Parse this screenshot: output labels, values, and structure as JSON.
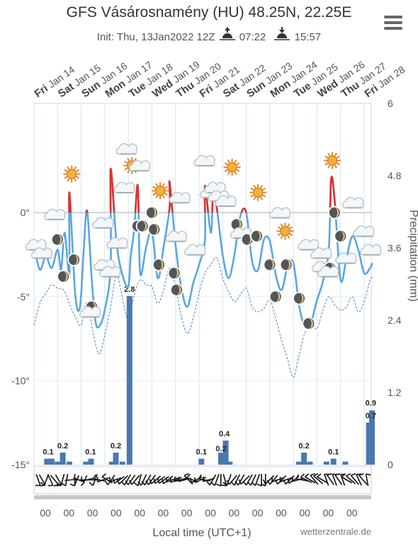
{
  "header": {
    "title": "GFS Vásárosnamény (HU) 48.25N, 22.25E",
    "init": "Init: Thu, 13Jan2022 12Z",
    "sunrise": "07:22",
    "sunset": "15:57"
  },
  "footer": {
    "xlabel": "Local time (UTC+1)",
    "credit": "wetterzentrale.de",
    "hour_label": "00"
  },
  "chart_data": {
    "type": "line",
    "days": [
      {
        "dow": "Fri",
        "date": "Jan 14"
      },
      {
        "dow": "Sat",
        "date": "Jan 15"
      },
      {
        "dow": "Sun",
        "date": "Jan 16"
      },
      {
        "dow": "Mon",
        "date": "Jan 17"
      },
      {
        "dow": "Tue",
        "date": "Jan 18"
      },
      {
        "dow": "Wed",
        "date": "Jan 19"
      },
      {
        "dow": "Thu",
        "date": "Jan 20"
      },
      {
        "dow": "Fri",
        "date": "Jan 21"
      },
      {
        "dow": "Sat",
        "date": "Jan 22"
      },
      {
        "dow": "Sun",
        "date": "Jan 23"
      },
      {
        "dow": "Mon",
        "date": "Jan 24"
      },
      {
        "dow": "Tue",
        "date": "Jan 25"
      },
      {
        "dow": "Wed",
        "date": "Jan 26"
      },
      {
        "dow": "Thu",
        "date": "Jan 27"
      },
      {
        "dow": "Fri",
        "date": "Jan 28"
      }
    ],
    "x_range_days": [
      0,
      14.3
    ],
    "temp_axis": {
      "ylim": [
        -15,
        6.5
      ],
      "ticks": [
        0,
        -5,
        -10,
        -15
      ],
      "tick_suffix": "°"
    },
    "precip_axis": {
      "label": "Precipitation (mm)",
      "ylim": [
        0,
        6
      ],
      "ticks": [
        "6",
        "4.8",
        "3.6",
        "2.4",
        "1.2",
        "0"
      ]
    },
    "colors": {
      "temp": "#5aa6e0",
      "temp_above_zero": "#e03030",
      "dewpoint": "#4a7fc1",
      "precip": "#4a78b0",
      "grid": "#d4e4f0",
      "zero_line": "#aaaaaa"
    },
    "temperature": [
      [
        0.0,
        -2.0
      ],
      [
        0.25,
        -3.4
      ],
      [
        0.5,
        -2.6
      ],
      [
        0.75,
        -3.3
      ],
      [
        1.0,
        -2.2
      ],
      [
        1.15,
        -3.4
      ],
      [
        1.3,
        -1.2
      ],
      [
        1.5,
        -3.8
      ],
      [
        1.75,
        -4.9
      ],
      [
        1.95,
        -5.6
      ],
      [
        2.1,
        -2.4
      ],
      [
        2.25,
        0.1
      ],
      [
        2.45,
        -4.0
      ],
      [
        2.6,
        -6.4
      ],
      [
        2.75,
        -6.8
      ],
      [
        3.0,
        -5.8
      ],
      [
        3.25,
        -3.2
      ],
      [
        3.5,
        -1.8
      ],
      [
        3.75,
        -3.7
      ],
      [
        4.0,
        -4.4
      ],
      [
        4.1,
        -2.6
      ],
      [
        4.25,
        -1.0
      ],
      [
        4.5,
        -3.6
      ],
      [
        4.75,
        -2.1
      ],
      [
        5.0,
        -1.1
      ],
      [
        5.25,
        -3.9
      ],
      [
        5.5,
        -2.0
      ],
      [
        5.75,
        0.3
      ],
      [
        6.0,
        -1.9
      ],
      [
        6.25,
        -4.5
      ],
      [
        6.5,
        -5.6
      ],
      [
        6.75,
        -4.2
      ],
      [
        7.0,
        -3.1
      ],
      [
        7.25,
        -1.6
      ],
      [
        7.5,
        -1.2
      ],
      [
        7.75,
        0.3
      ],
      [
        8.0,
        -2.5
      ],
      [
        8.25,
        -3.9
      ],
      [
        8.5,
        -2.5
      ],
      [
        8.75,
        -0.2
      ],
      [
        9.0,
        0.0
      ],
      [
        9.25,
        -2.9
      ],
      [
        9.5,
        -3.4
      ],
      [
        9.75,
        -1.6
      ],
      [
        10.0,
        -1.7
      ],
      [
        10.25,
        -3.7
      ],
      [
        10.5,
        -4.6
      ],
      [
        10.75,
        -3.2
      ],
      [
        11.0,
        -3.0
      ],
      [
        11.25,
        -5.6
      ],
      [
        11.5,
        -6.8
      ],
      [
        11.75,
        -6.5
      ],
      [
        12.0,
        -5.2
      ],
      [
        12.25,
        -4.1
      ],
      [
        12.5,
        -2.2
      ],
      [
        12.75,
        0.7
      ],
      [
        13.0,
        -4.0
      ],
      [
        13.25,
        -2.7
      ],
      [
        13.5,
        -1.4
      ],
      [
        13.75,
        -2.2
      ],
      [
        14.0,
        -3.6
      ],
      [
        14.25,
        -3.3
      ],
      [
        14.35,
        -3.0
      ]
    ],
    "temperature_highs": [
      [
        1.5,
        1.2
      ],
      [
        3.25,
        2.6
      ],
      [
        4.4,
        1.6
      ],
      [
        5.75,
        1.8
      ],
      [
        7.25,
        1.6
      ],
      [
        7.6,
        1.4
      ],
      [
        12.6,
        2.0
      ]
    ],
    "dewpoint": [
      [
        0.0,
        -6.7
      ],
      [
        0.25,
        -5.4
      ],
      [
        0.5,
        -4.8
      ],
      [
        0.75,
        -4.3
      ],
      [
        1.0,
        -4.5
      ],
      [
        1.25,
        -4.6
      ],
      [
        1.5,
        -5.4
      ],
      [
        1.75,
        -6.2
      ],
      [
        2.0,
        -6.7
      ],
      [
        2.25,
        -5.3
      ],
      [
        2.5,
        -7.1
      ],
      [
        2.75,
        -8.4
      ],
      [
        3.0,
        -7.3
      ],
      [
        3.25,
        -5.6
      ],
      [
        3.5,
        -3.7
      ],
      [
        3.75,
        -5.1
      ],
      [
        4.0,
        -6.4
      ],
      [
        4.25,
        -4.9
      ],
      [
        4.5,
        -4.0
      ],
      [
        4.75,
        -4.3
      ],
      [
        5.0,
        -4.4
      ],
      [
        5.25,
        -5.4
      ],
      [
        5.5,
        -4.6
      ],
      [
        5.75,
        -3.3
      ],
      [
        6.0,
        -4.4
      ],
      [
        6.25,
        -6.2
      ],
      [
        6.5,
        -7.2
      ],
      [
        6.75,
        -6.3
      ],
      [
        7.0,
        -4.8
      ],
      [
        7.25,
        -3.6
      ],
      [
        7.5,
        -3.1
      ],
      [
        7.75,
        -2.7
      ],
      [
        8.0,
        -3.9
      ],
      [
        8.25,
        -4.7
      ],
      [
        8.5,
        -5.3
      ],
      [
        8.75,
        -4.9
      ],
      [
        9.0,
        -4.5
      ],
      [
        9.25,
        -5.6
      ],
      [
        9.5,
        -5.9
      ],
      [
        9.75,
        -5.7
      ],
      [
        10.0,
        -5.2
      ],
      [
        10.25,
        -6.3
      ],
      [
        10.5,
        -7.6
      ],
      [
        10.75,
        -8.7
      ],
      [
        11.0,
        -9.8
      ],
      [
        11.25,
        -8.4
      ],
      [
        11.5,
        -7.1
      ],
      [
        11.75,
        -6.6
      ],
      [
        12.0,
        -6.9
      ],
      [
        12.25,
        -5.8
      ],
      [
        12.5,
        -5.0
      ],
      [
        12.75,
        -5.5
      ],
      [
        13.0,
        -5.8
      ],
      [
        13.25,
        -5.6
      ],
      [
        13.5,
        -5.0
      ],
      [
        13.75,
        -5.9
      ],
      [
        14.0,
        -5.3
      ],
      [
        14.25,
        -4.0
      ],
      [
        14.35,
        -3.9
      ]
    ],
    "precip_bars": [
      [
        0.55,
        0.1
      ],
      [
        0.75,
        0.1
      ],
      [
        1.0,
        0.05
      ],
      [
        1.22,
        0.2
      ],
      [
        1.5,
        0.05
      ],
      [
        2.2,
        0.05
      ],
      [
        2.42,
        0.1
      ],
      [
        3.3,
        0.05
      ],
      [
        3.47,
        0.2
      ],
      [
        3.75,
        0.05
      ],
      [
        4.05,
        2.8
      ],
      [
        7.1,
        0.1
      ],
      [
        7.93,
        0.2
      ],
      [
        8.13,
        0.4
      ],
      [
        8.3,
        0.05
      ],
      [
        11.23,
        0.05
      ],
      [
        11.45,
        0.2
      ],
      [
        11.7,
        0.05
      ],
      [
        12.4,
        0.05
      ],
      [
        12.7,
        0.1
      ],
      [
        13.2,
        0.05
      ],
      [
        14.2,
        0.7
      ],
      [
        14.33,
        0.9
      ]
    ],
    "precip_labels": [
      [
        0.6,
        "0.1"
      ],
      [
        1.22,
        "0.2"
      ],
      [
        2.4,
        "0.1"
      ],
      [
        3.47,
        "0.2"
      ],
      [
        4.05,
        "2.8"
      ],
      [
        7.1,
        "0.1"
      ],
      [
        7.93,
        "0.2"
      ],
      [
        8.07,
        "0.4"
      ],
      [
        11.45,
        "0.2"
      ],
      [
        12.7,
        "0.1"
      ],
      [
        14.28,
        "0.7"
      ],
      [
        14.28,
        "0.9"
      ]
    ],
    "weather_icons": [
      [
        0.1,
        -2.0,
        "cloud"
      ],
      [
        0.35,
        -2.5,
        "cloud"
      ],
      [
        0.9,
        -0.2,
        "cloud"
      ],
      [
        1.0,
        -1.6,
        "moon"
      ],
      [
        1.25,
        -3.8,
        "moon"
      ],
      [
        1.7,
        -2.8,
        "moon"
      ],
      [
        1.6,
        2.3,
        "sun"
      ],
      [
        2.45,
        -5.6,
        "moon"
      ],
      [
        2.4,
        -6.0,
        "cloud"
      ],
      [
        2.95,
        -0.7,
        "cloud"
      ],
      [
        3.0,
        -3.2,
        "cloud"
      ],
      [
        3.25,
        -3.6,
        "cloud"
      ],
      [
        3.55,
        -1.9,
        "cloud"
      ],
      [
        3.95,
        3.7,
        "cloud"
      ],
      [
        3.85,
        1.4,
        "cloud"
      ],
      [
        4.15,
        2.8,
        "sun"
      ],
      [
        4.4,
        -0.8,
        "moon"
      ],
      [
        4.6,
        -0.8,
        "moon"
      ],
      [
        4.5,
        2.7,
        "cloud"
      ],
      [
        5.35,
        1.3,
        "sun"
      ],
      [
        5.0,
        0.0,
        "moon"
      ],
      [
        5.1,
        -1.0,
        "moon"
      ],
      [
        5.3,
        -3.1,
        "moon"
      ],
      [
        5.95,
        -3.6,
        "moon"
      ],
      [
        6.05,
        -4.6,
        "moon"
      ],
      [
        6.05,
        -1.5,
        "cloud"
      ],
      [
        6.2,
        0.8,
        "cloud"
      ],
      [
        6.85,
        -2.3,
        "cloud"
      ],
      [
        7.25,
        3.0,
        "cloud"
      ],
      [
        7.5,
        1.1,
        "cloud"
      ],
      [
        7.7,
        1.4,
        "cloud"
      ],
      [
        7.85,
        0.9,
        "cloud"
      ],
      [
        8.15,
        0.6,
        "cloud"
      ],
      [
        8.4,
        2.7,
        "sun"
      ],
      [
        8.6,
        -0.7,
        "moon"
      ],
      [
        8.8,
        -1.3,
        "cloud"
      ],
      [
        9.05,
        -1.6,
        "moon"
      ],
      [
        9.5,
        1.2,
        "sun"
      ],
      [
        9.45,
        -1.4,
        "moon"
      ],
      [
        10.0,
        -3.1,
        "moon"
      ],
      [
        10.45,
        -0.1,
        "cloud"
      ],
      [
        10.65,
        -1.1,
        "sun"
      ],
      [
        10.7,
        -3.1,
        "moon"
      ],
      [
        10.25,
        -5.0,
        "moon"
      ],
      [
        11.25,
        -5.1,
        "moon"
      ],
      [
        11.65,
        -2.0,
        "cloud"
      ],
      [
        11.65,
        -6.6,
        "moon"
      ],
      [
        12.2,
        -2.5,
        "cloud"
      ],
      [
        12.25,
        -3.3,
        "cloud"
      ],
      [
        12.55,
        -3.3,
        "moon"
      ],
      [
        12.5,
        -3.6,
        "cloud"
      ],
      [
        12.75,
        0.0,
        "moon"
      ],
      [
        12.65,
        3.1,
        "sun"
      ],
      [
        13.0,
        -1.4,
        "moon"
      ],
      [
        13.25,
        -2.8,
        "cloud"
      ],
      [
        13.55,
        0.5,
        "cloud"
      ],
      [
        14.0,
        -1.2,
        "cloud"
      ],
      [
        14.3,
        -2.3,
        "cloud"
      ]
    ],
    "wind_direction_deg": [
      160,
      150,
      200,
      155,
      140,
      150,
      195,
      190,
      85,
      180,
      110,
      270,
      255,
      270,
      200,
      280,
      250,
      300,
      215,
      250,
      235,
      225,
      210,
      215,
      220,
      195,
      205,
      210,
      215,
      230,
      235,
      235,
      230,
      250,
      245,
      255,
      255,
      315,
      290,
      240,
      245,
      280,
      255,
      210,
      200,
      180,
      165,
      200,
      220,
      205,
      210,
      225,
      210,
      205,
      200,
      180,
      180,
      225,
      220,
      250,
      225,
      250,
      225,
      235,
      255,
      280,
      295,
      300,
      320,
      310,
      300,
      340,
      325,
      340,
      325,
      340,
      300,
      310,
      320,
      335,
      320,
      350
    ]
  }
}
